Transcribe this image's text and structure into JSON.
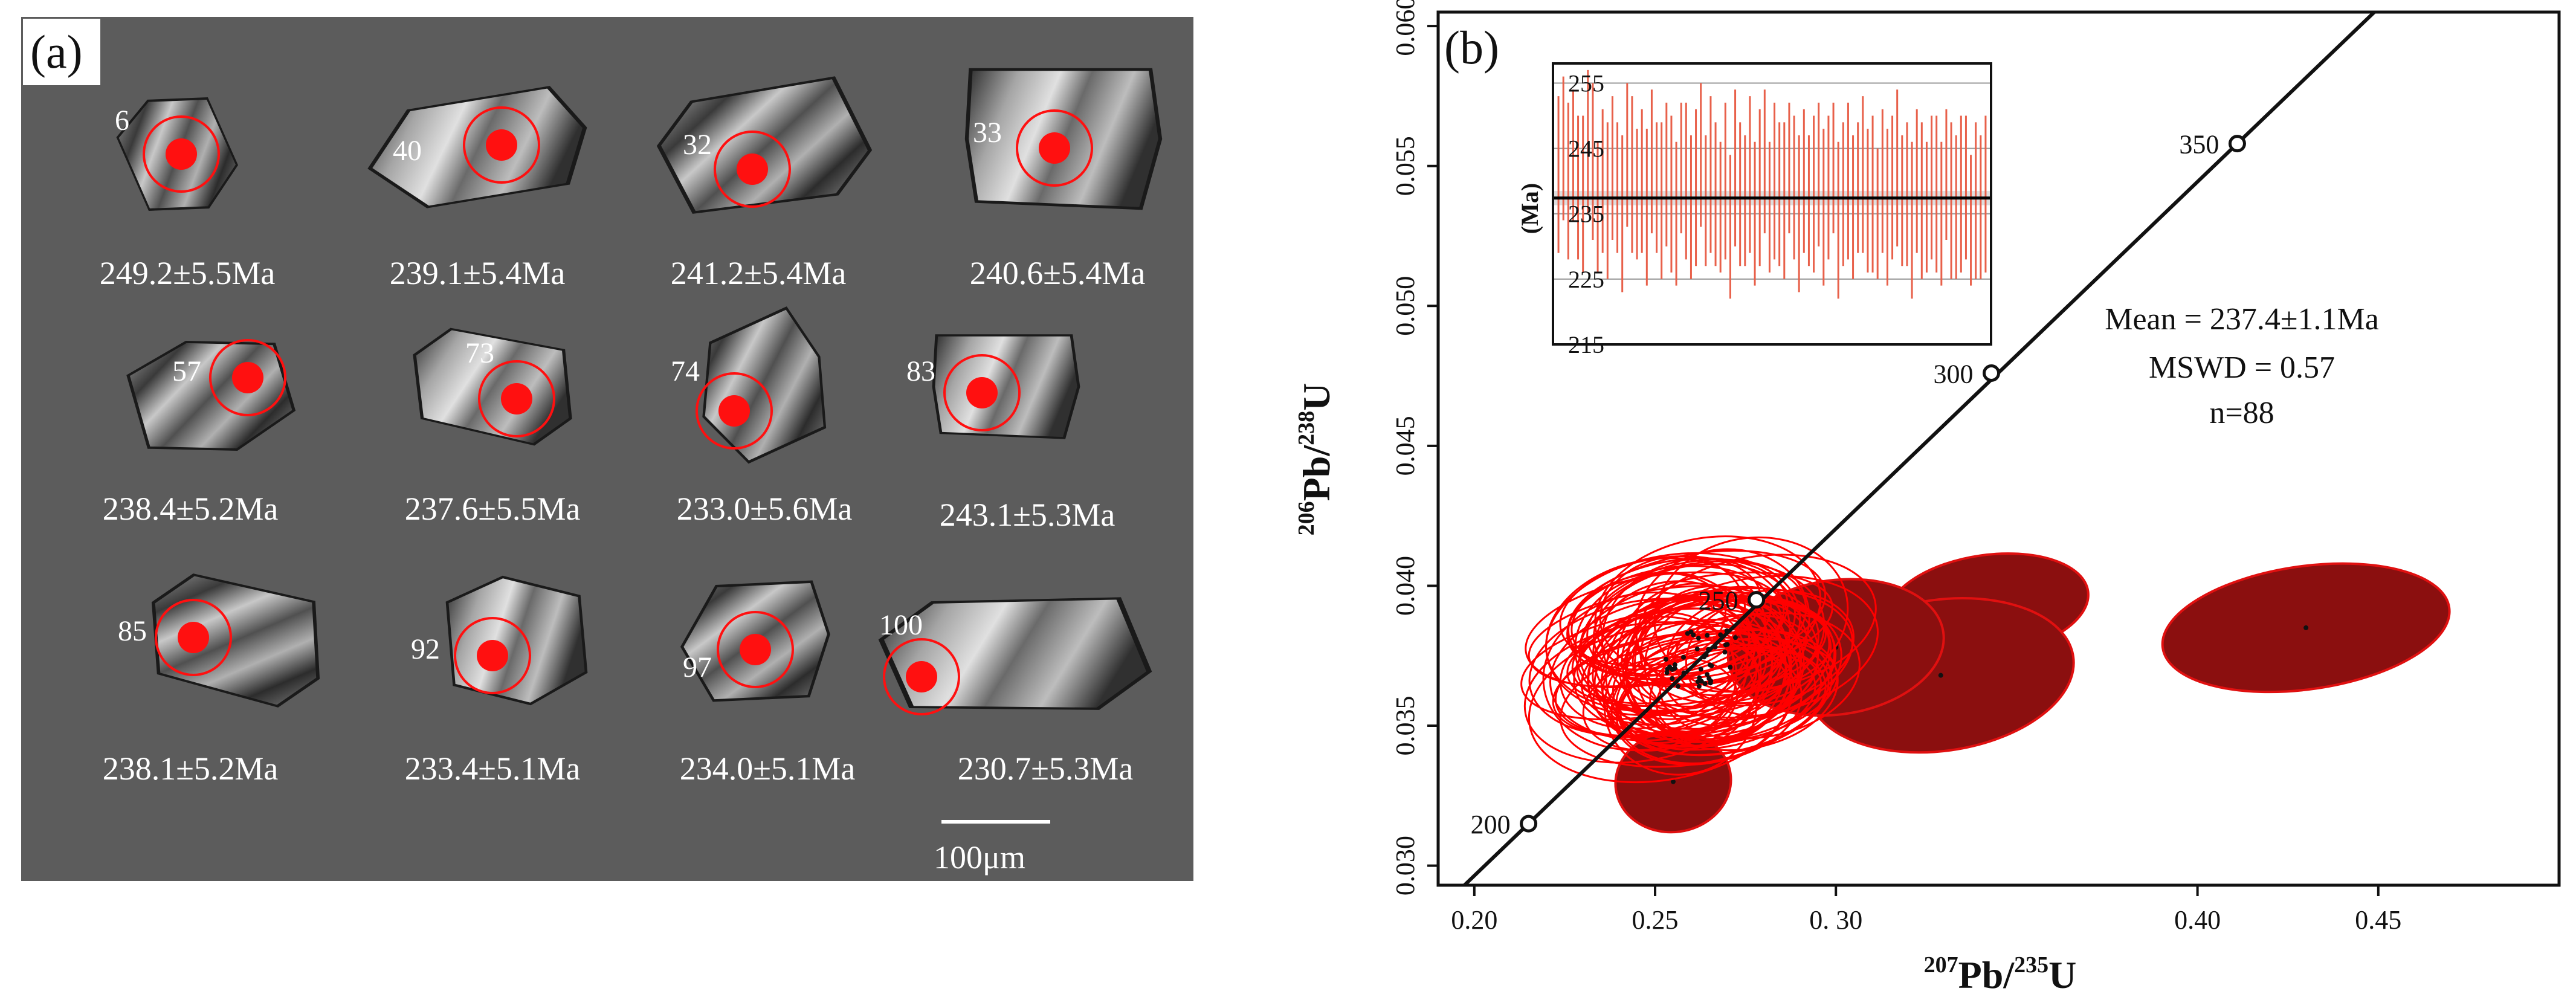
{
  "panel_a": {
    "label": "(a)",
    "scale_bar_label": "100μm",
    "grains": [
      {
        "spot": "6",
        "age": "249.2±5.5Ma"
      },
      {
        "spot": "40",
        "age": "239.1±5.4Ma"
      },
      {
        "spot": "32",
        "age": "241.2±5.4Ma"
      },
      {
        "spot": "33",
        "age": "240.6±5.4Ma"
      },
      {
        "spot": "57",
        "age": "238.4±5.2Ma"
      },
      {
        "spot": "73",
        "age": "237.6±5.5Ma"
      },
      {
        "spot": "74",
        "age": "233.0±5.6Ma"
      },
      {
        "spot": "83",
        "age": "243.1±5.3Ma"
      },
      {
        "spot": "85",
        "age": "238.1±5.2Ma"
      },
      {
        "spot": "92",
        "age": "233.4±5.1Ma"
      },
      {
        "spot": "97",
        "age": "234.0±5.1Ma"
      },
      {
        "spot": "100",
        "age": "230.7±5.3Ma"
      }
    ],
    "colors": {
      "background": "#5c5c5c",
      "spot": "#ff1010"
    }
  },
  "chart_data": [
    {
      "type": "scatter",
      "title": "",
      "panel_label": "(b)",
      "xlabel_iso": "207",
      "xlabel_el": "Pb/",
      "xlabel_iso2": "235",
      "xlabel_el2": "U",
      "ylabel_iso": "206",
      "ylabel_el": "Pb/",
      "ylabel_iso2": "238",
      "ylabel_el2": "U",
      "xlim": [
        0.19,
        0.5
      ],
      "ylim": [
        0.0293,
        0.0605
      ],
      "x_ticks": [
        0.2,
        0.25,
        0.3,
        0.4,
        0.45
      ],
      "x_tick_labels": [
        "0.20",
        "0.25",
        "0. 30",
        "0.40",
        "0.45"
      ],
      "y_ticks": [
        0.03,
        0.035,
        0.04,
        0.045,
        0.05,
        0.055,
        0.06
      ],
      "y_tick_labels": [
        "0.030",
        "0.035",
        "0.040",
        "0.045",
        "0.050",
        "0.055",
        "0.060"
      ],
      "concordia": {
        "ages_ma": [
          200,
          250,
          300,
          350
        ],
        "labels": [
          "200",
          "250",
          "300",
          "350"
        ],
        "points": [
          [
            0.215,
            0.0315
          ],
          [
            0.278,
            0.0395
          ],
          [
            0.343,
            0.0476
          ],
          [
            0.411,
            0.0558
          ]
        ]
      },
      "stats": {
        "mean": "Mean = 237.4±1.1Ma",
        "mswd": "MSWD = 0.57",
        "n": "n=88"
      },
      "discordant_ellipses": [
        {
          "x": 0.43,
          "y": 0.0385,
          "rx": 0.04,
          "ry": 0.0022
        },
        {
          "x": 0.342,
          "y": 0.0393,
          "rx": 0.028,
          "ry": 0.0018
        },
        {
          "x": 0.329,
          "y": 0.0368,
          "rx": 0.037,
          "ry": 0.0027
        },
        {
          "x": 0.3,
          "y": 0.0378,
          "rx": 0.03,
          "ry": 0.0024
        },
        {
          "x": 0.255,
          "y": 0.033,
          "rx": 0.016,
          "ry": 0.0018
        }
      ],
      "concordant_cluster": {
        "x": 0.263,
        "y": 0.0374,
        "count": 70
      },
      "colors": {
        "concordant": "#ff0000",
        "discordant_fill": "#8b0f0f",
        "discordant_edge": "#e01010"
      }
    },
    {
      "type": "bar",
      "title": "",
      "ylabel": "(Ma)",
      "ylim": [
        215,
        258
      ],
      "y_ticks": [
        215,
        225,
        235,
        245,
        255
      ],
      "y_tick_labels": [
        "215",
        "225",
        "235",
        "245",
        "255"
      ],
      "mean_line": 237.4,
      "mean_band": [
        236.3,
        238.5
      ],
      "n": 88,
      "values": [
        241,
        245,
        240,
        244,
        239,
        238,
        246,
        243,
        236,
        240,
        237,
        242,
        239,
        235,
        244,
        241,
        238,
        240,
        236,
        243,
        239,
        237,
        241,
        238,
        235,
        242,
        240,
        236,
        239,
        244,
        237,
        241,
        238,
        236,
        240,
        233,
        242,
        238,
        237,
        241,
        235,
        239,
        243,
        236,
        240,
        238,
        237,
        242,
        239,
        235,
        240,
        237,
        238,
        241,
        236,
        239,
        242,
        234,
        238,
        240,
        236,
        239,
        241,
        237,
        238,
        235,
        240,
        236,
        239,
        242,
        237,
        238,
        234,
        240,
        237,
        236,
        239,
        238,
        235,
        241,
        237,
        236,
        238,
        239,
        234,
        237,
        236,
        238
      ],
      "errors": [
        12,
        11,
        12,
        10,
        11,
        12,
        11,
        12,
        10,
        11,
        12,
        11,
        10,
        12,
        11,
        12,
        10,
        11,
        12,
        11,
        10,
        12,
        11,
        12,
        11,
        10,
        12,
        11,
        12,
        11,
        10,
        12,
        11,
        10,
        12,
        11,
        12,
        11,
        10,
        12,
        11,
        12,
        11,
        10,
        12,
        11,
        12,
        10,
        11,
        12,
        11,
        10,
        12,
        11,
        12,
        11,
        10,
        12,
        11,
        12,
        11,
        10,
        12,
        11,
        12,
        10,
        11,
        12,
        11,
        12,
        10,
        11,
        12,
        11,
        12,
        10,
        11,
        12,
        11,
        10,
        12,
        11,
        12,
        11,
        10,
        12,
        11,
        12
      ],
      "colors": {
        "bar": "#e8604a",
        "mean": "#000000",
        "grid": "#999999"
      }
    }
  ]
}
